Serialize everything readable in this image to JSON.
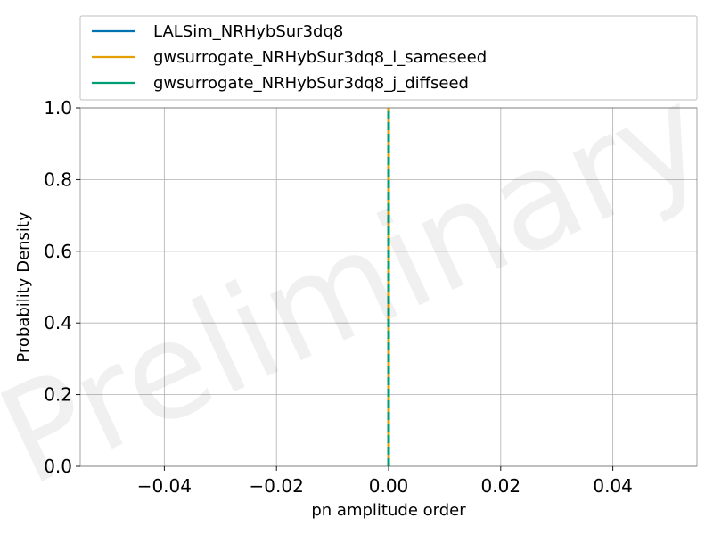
{
  "chart_data": {
    "type": "line",
    "title": "",
    "xlabel": "pn amplitude order",
    "ylabel": "Probability Density",
    "xlim": [
      -0.055,
      0.055
    ],
    "ylim": [
      0.0,
      1.0
    ],
    "xticks": [
      -0.04,
      -0.02,
      0.0,
      0.02,
      0.04
    ],
    "xtick_labels": [
      "−0.04",
      "−0.02",
      "0.00",
      "0.02",
      "0.04"
    ],
    "yticks": [
      0.0,
      0.2,
      0.4,
      0.6,
      0.8,
      1.0
    ],
    "ytick_labels": [
      "0.0",
      "0.2",
      "0.4",
      "0.6",
      "0.8",
      "1.0"
    ],
    "grid": true,
    "legend_position": "top",
    "watermark": "Preliminary",
    "series": [
      {
        "name": "LALSim_NRHybSur3dq8",
        "color": "#0072b2",
        "style": "solid",
        "x": [
          0.0,
          0.0
        ],
        "y": [
          0.0,
          1.0
        ]
      },
      {
        "name": "gwsurrogate_NRHybSur3dq8_l_sameseed",
        "color": "#e69f00",
        "style": "solid",
        "x": [
          0.0,
          0.0
        ],
        "y": [
          0.0,
          1.0
        ]
      },
      {
        "name": "gwsurrogate_NRHybSur3dq8_j_diffseed",
        "color": "#009e73",
        "style": "dashed",
        "x": [
          0.0,
          0.0
        ],
        "y": [
          0.0,
          1.0
        ]
      }
    ]
  }
}
